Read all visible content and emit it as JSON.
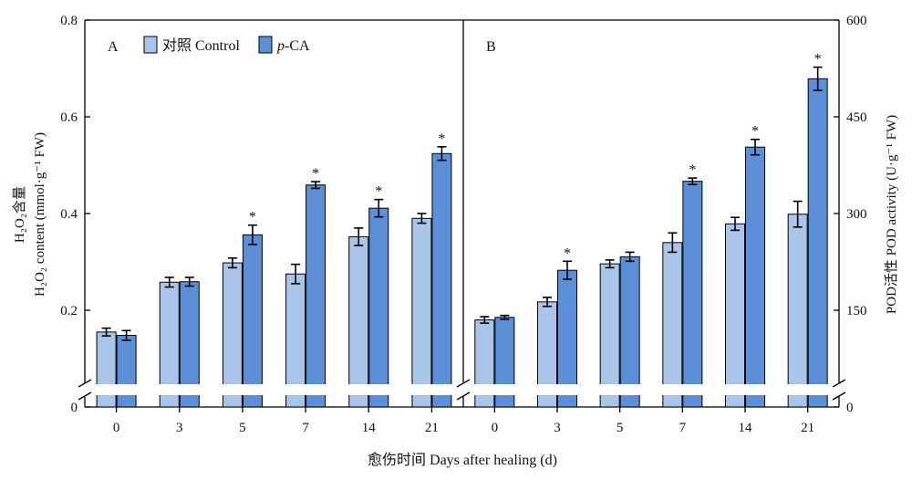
{
  "chart_data": [
    {
      "type": "bar",
      "panel_label": "A",
      "categories": [
        "0",
        "3",
        "5",
        "7",
        "14",
        "21"
      ],
      "series": [
        {
          "name": "对照 Control",
          "color": "#a9c5ea",
          "values": [
            0.155,
            0.258,
            0.298,
            0.275,
            0.352,
            0.39
          ],
          "errors": [
            0.008,
            0.01,
            0.01,
            0.02,
            0.018,
            0.01
          ],
          "significance": [
            "",
            "",
            "",
            "",
            "",
            ""
          ]
        },
        {
          "name": "p-CA",
          "color": "#5b8fd8",
          "values": [
            0.148,
            0.259,
            0.356,
            0.459,
            0.411,
            0.524
          ],
          "errors": [
            0.01,
            0.009,
            0.02,
            0.007,
            0.018,
            0.014
          ],
          "significance": [
            "",
            "",
            "*",
            "*",
            "*",
            "*"
          ]
        }
      ],
      "ylabel_line1": "H₂O₂含量",
      "ylabel_line2": "H₂O₂ content (mmol·g⁻¹ FW)",
      "yticks": [
        "0",
        "0.2",
        "0.4",
        "0.6",
        "0.8"
      ],
      "ytick_values": [
        0,
        0.2,
        0.4,
        0.6,
        0.8
      ],
      "ylim": [
        0,
        0.8
      ],
      "axis_break": true
    },
    {
      "type": "bar",
      "panel_label": "B",
      "categories": [
        "0",
        "3",
        "5",
        "7",
        "14",
        "21"
      ],
      "series": [
        {
          "name": "对照 Control",
          "color": "#a9c5ea",
          "values": [
            135,
            163,
            222,
            255,
            284,
            299
          ],
          "errors": [
            5,
            7,
            6,
            15,
            10,
            20
          ],
          "significance": [
            "",
            "",
            "",
            "",
            "",
            ""
          ]
        },
        {
          "name": "p-CA",
          "color": "#5b8fd8",
          "values": [
            139,
            212,
            233,
            350,
            403,
            509
          ],
          "errors": [
            3,
            14,
            7,
            5,
            12,
            18
          ],
          "significance": [
            "",
            "*",
            "",
            "*",
            "*",
            "*"
          ]
        }
      ],
      "ylabel": "POD活性 POD activity (U·g⁻¹ FW)",
      "yticks": [
        "0",
        "150",
        "300",
        "450",
        "600"
      ],
      "ytick_values": [
        0,
        150,
        300,
        450,
        600
      ],
      "ylim": [
        0,
        600
      ],
      "axis_break": true
    }
  ],
  "legend": {
    "control_label": "对照 Control",
    "pca_label_italic": "p",
    "pca_label_rest": "-CA"
  },
  "xlabel": "愈伤时间 Days after healing (d)",
  "significance_marker": "*"
}
